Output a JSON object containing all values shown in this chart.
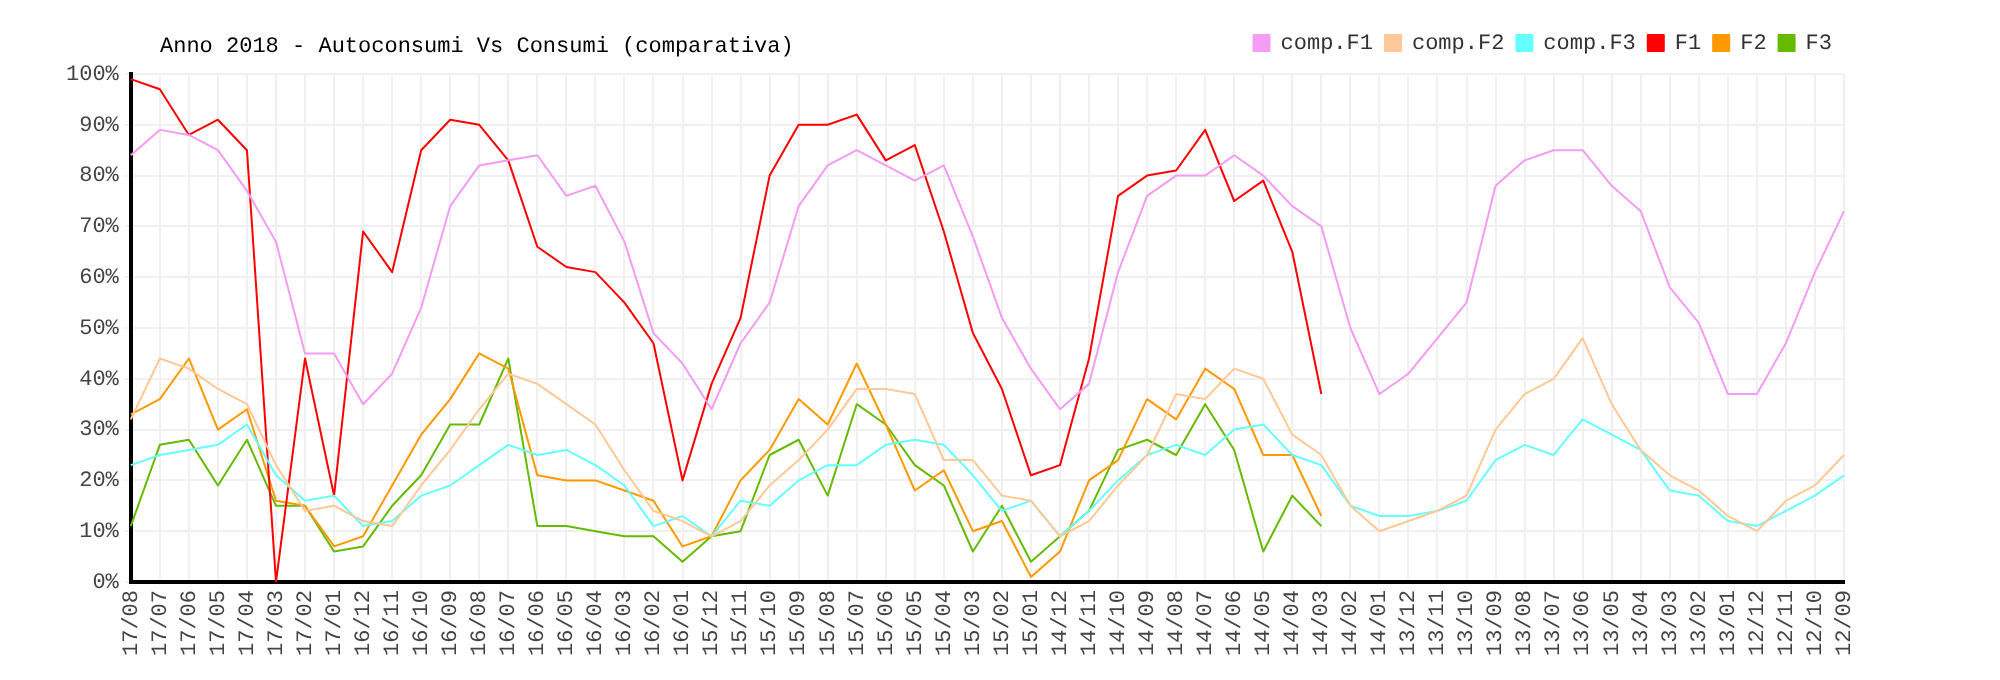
{
  "chart_data": {
    "type": "line",
    "title": "Anno 2018 - Autoconsumi Vs Consumi (comparativa)",
    "categories": [
      "17/08",
      "17/07",
      "17/06",
      "17/05",
      "17/04",
      "17/03",
      "17/02",
      "17/01",
      "16/12",
      "16/11",
      "16/10",
      "16/09",
      "16/08",
      "16/07",
      "16/06",
      "16/05",
      "16/04",
      "16/03",
      "16/02",
      "16/01",
      "15/12",
      "15/11",
      "15/10",
      "15/09",
      "15/08",
      "15/07",
      "15/06",
      "15/05",
      "15/04",
      "15/03",
      "15/02",
      "15/01",
      "14/12",
      "14/11",
      "14/10",
      "14/09",
      "14/08",
      "14/07",
      "14/06",
      "14/05",
      "14/04",
      "14/03",
      "14/02",
      "14/01",
      "13/12",
      "13/11",
      "13/10",
      "13/09",
      "13/08",
      "13/07",
      "13/06",
      "13/05",
      "13/04",
      "13/03",
      "13/02",
      "13/01",
      "12/12",
      "12/11",
      "12/10",
      "12/09"
    ],
    "series": [
      {
        "name": "comp.F1",
        "color": "#f49cf4",
        "values": [
          84,
          89,
          88,
          85,
          77,
          67,
          45,
          45,
          35,
          41,
          54,
          74,
          82,
          83,
          84,
          76,
          78,
          67,
          49,
          43,
          34,
          47,
          55,
          74,
          82,
          85,
          82,
          79,
          82,
          68,
          52,
          42,
          34,
          39,
          61,
          76,
          80,
          80,
          84,
          80,
          74,
          70,
          50,
          37,
          41,
          48,
          55,
          78,
          83,
          85,
          85,
          78,
          73,
          58,
          51,
          37,
          37,
          47,
          61,
          73
        ]
      },
      {
        "name": "comp.F2",
        "color": "#ffc896",
        "values": [
          32,
          44,
          42,
          38,
          35,
          23,
          14,
          15,
          12,
          11,
          19,
          26,
          34,
          41,
          39,
          35,
          31,
          22,
          14,
          12,
          9,
          12,
          19,
          24,
          30,
          38,
          38,
          37,
          24,
          24,
          17,
          16,
          9,
          12,
          19,
          25,
          37,
          36,
          42,
          40,
          29,
          25,
          15,
          10,
          12,
          14,
          17,
          30,
          37,
          40,
          48,
          35,
          26,
          21,
          18,
          13,
          10,
          16,
          19,
          25
        ]
      },
      {
        "name": "comp.F3",
        "color": "#66ffff",
        "values": [
          23,
          25,
          26,
          27,
          31,
          21,
          16,
          17,
          11,
          12,
          17,
          19,
          23,
          27,
          25,
          26,
          23,
          19,
          11,
          13,
          9,
          16,
          15,
          20,
          23,
          23,
          27,
          28,
          27,
          21,
          14,
          16,
          9,
          14,
          20,
          25,
          27,
          25,
          30,
          31,
          25,
          23,
          15,
          13,
          13,
          14,
          16,
          24,
          27,
          25,
          32,
          29,
          26,
          18,
          17,
          12,
          11,
          14,
          17,
          21
        ]
      },
      {
        "name": "F1",
        "color": "#ff0000",
        "values": [
          99,
          97,
          88,
          91,
          85,
          0,
          44,
          17,
          69,
          61,
          85,
          91,
          90,
          83,
          66,
          62,
          61,
          55,
          47,
          20,
          39,
          52,
          80,
          90,
          90,
          92,
          83,
          86,
          69,
          49,
          38,
          21,
          23,
          44,
          76,
          80,
          81,
          89,
          75,
          79,
          65,
          37,
          null,
          null,
          null,
          null,
          null,
          null,
          null,
          null,
          null,
          null,
          null,
          null,
          null,
          null,
          null,
          null,
          null,
          null
        ]
      },
      {
        "name": "F2",
        "color": "#ff9900",
        "values": [
          33,
          36,
          44,
          30,
          34,
          16,
          15,
          7,
          9,
          19,
          29,
          36,
          45,
          42,
          21,
          20,
          20,
          18,
          16,
          7,
          9,
          20,
          26,
          36,
          31,
          43,
          31,
          18,
          22,
          10,
          12,
          1,
          6,
          20,
          24,
          36,
          32,
          42,
          38,
          25,
          25,
          13,
          null,
          null,
          null,
          null,
          null,
          null,
          null,
          null,
          null,
          null,
          null,
          null,
          null,
          null,
          null,
          null,
          null,
          null
        ]
      },
      {
        "name": "F3",
        "color": "#66bb00",
        "values": [
          11,
          27,
          28,
          19,
          28,
          15,
          15,
          6,
          7,
          15,
          21,
          31,
          31,
          44,
          11,
          11,
          10,
          9,
          9,
          4,
          9,
          10,
          25,
          28,
          17,
          35,
          31,
          23,
          19,
          6,
          15,
          4,
          9,
          14,
          26,
          28,
          25,
          35,
          26,
          6,
          17,
          11,
          null,
          null,
          null,
          null,
          null,
          null,
          null,
          null,
          null,
          null,
          null,
          null,
          null,
          null,
          null,
          null,
          null,
          null
        ]
      }
    ],
    "ylim": [
      0,
      100
    ],
    "yticks": [
      {
        "value": 0,
        "label": "0%"
      },
      {
        "value": 10,
        "label": "10%"
      },
      {
        "value": 20,
        "label": "20%"
      },
      {
        "value": 30,
        "label": "30%"
      },
      {
        "value": 40,
        "label": "40%"
      },
      {
        "value": 50,
        "label": "50%"
      },
      {
        "value": 60,
        "label": "60%"
      },
      {
        "value": 70,
        "label": "70%"
      },
      {
        "value": 80,
        "label": "80%"
      },
      {
        "value": 90,
        "label": "90%"
      },
      {
        "value": 100,
        "label": "100%"
      }
    ],
    "grid": true,
    "legend": "top right",
    "marker": "none",
    "line_style": "solid"
  }
}
